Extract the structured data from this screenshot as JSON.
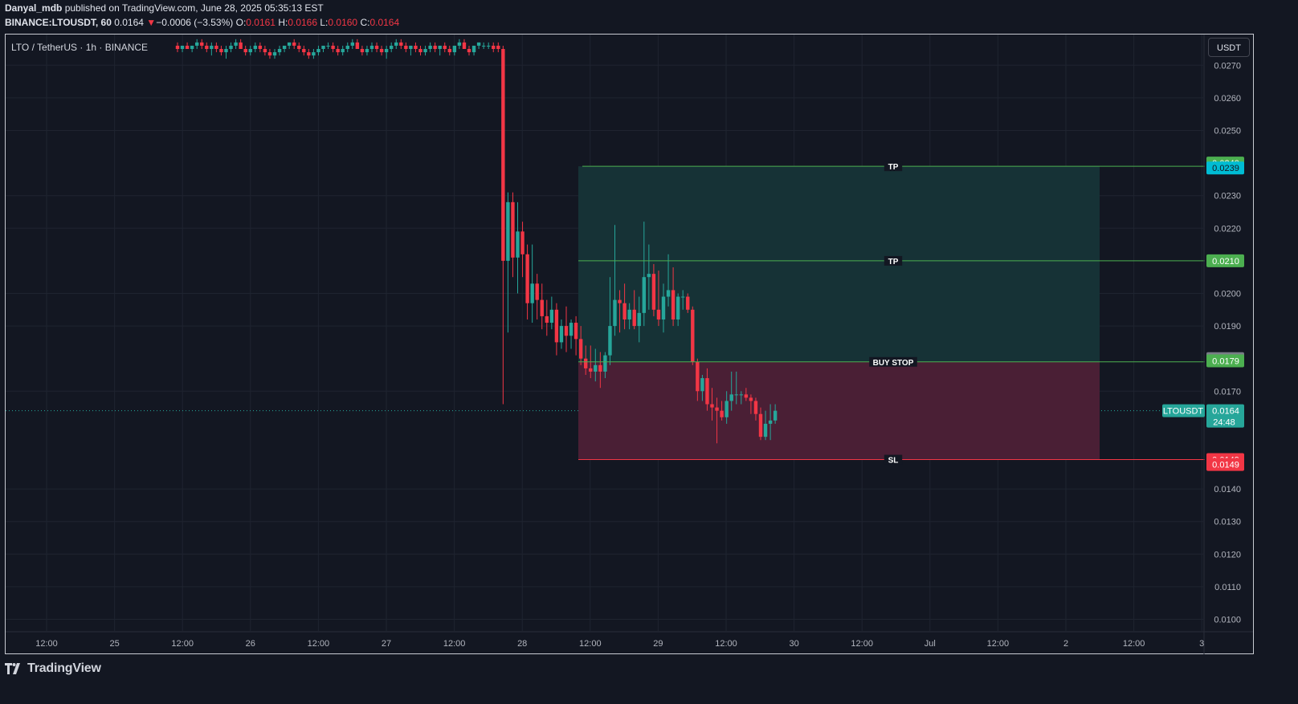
{
  "header": {
    "user": "Danyal_mdb",
    "published_text": " published on TradingView.com, June 28, 2025 05:35:13 EST",
    "symbol": "BINANCE:LTOUSDT, 60",
    "last": "0.0164",
    "arrow": "▼",
    "change": "−0.0006 (−3.53%)",
    "o_label": "O:",
    "o_value": "0.0161",
    "h_label": "H:",
    "h_value": "0.0166",
    "l_label": "L:",
    "l_value": "0.0160",
    "c_label": "C:",
    "c_value": "0.0164"
  },
  "legend_title": "LTO / TetherUS · 1h · BINANCE",
  "currency_button": "USDT",
  "footer": {
    "logo_text": "TradingView"
  },
  "colors": {
    "background": "#131722",
    "up": "#26a69a",
    "down": "#f23645",
    "target_zone": "#163236",
    "stop_zone": "#4a1f35",
    "tp_line": "#4caf50",
    "sl_line": "#f23645",
    "grid": "#1f2430"
  },
  "chart_data": {
    "type": "candlestick",
    "price_axis": {
      "ylim": [
        0.0095,
        0.0278
      ],
      "ticks": [
        "0.0270",
        "0.0260",
        "0.0250",
        "0.0230",
        "0.0220",
        "0.0200",
        "0.0190",
        "0.0170",
        "0.0140",
        "0.0130",
        "0.0120",
        "0.0110",
        "0.0100"
      ]
    },
    "time_axis": {
      "ticks": [
        "12:00",
        "25",
        "12:00",
        "26",
        "12:00",
        "27",
        "12:00",
        "28",
        "12:00",
        "29",
        "12:00",
        "30",
        "12:00",
        "Jul",
        "12:00",
        "2",
        "12:00",
        "3"
      ]
    },
    "candles": [
      [
        0.0276,
        0.0277,
        0.0274,
        0.0275
      ],
      [
        0.0275,
        0.0276,
        0.0274,
        0.0276
      ],
      [
        0.0276,
        0.0277,
        0.0275,
        0.0275
      ],
      [
        0.0275,
        0.0276,
        0.0274,
        0.0276
      ],
      [
        0.0276,
        0.0278,
        0.0275,
        0.0277
      ],
      [
        0.0277,
        0.0278,
        0.0275,
        0.0276
      ],
      [
        0.0276,
        0.0277,
        0.0274,
        0.0275
      ],
      [
        0.0275,
        0.0277,
        0.0273,
        0.0276
      ],
      [
        0.0276,
        0.0277,
        0.0274,
        0.0275
      ],
      [
        0.0275,
        0.0276,
        0.0273,
        0.0274
      ],
      [
        0.0274,
        0.0276,
        0.0272,
        0.0275
      ],
      [
        0.0275,
        0.0277,
        0.0274,
        0.0276
      ],
      [
        0.0276,
        0.0278,
        0.0275,
        0.0277
      ],
      [
        0.0277,
        0.0278,
        0.0275,
        0.0275
      ],
      [
        0.0275,
        0.0276,
        0.0273,
        0.0274
      ],
      [
        0.0274,
        0.0276,
        0.0273,
        0.0275
      ],
      [
        0.0275,
        0.0277,
        0.0274,
        0.0276
      ],
      [
        0.0276,
        0.0277,
        0.0274,
        0.0275
      ],
      [
        0.0275,
        0.0276,
        0.0273,
        0.0274
      ],
      [
        0.0274,
        0.0275,
        0.0272,
        0.0273
      ],
      [
        0.0273,
        0.0275,
        0.0272,
        0.0274
      ],
      [
        0.0274,
        0.0276,
        0.0273,
        0.0275
      ],
      [
        0.0275,
        0.0276,
        0.0274,
        0.0276
      ],
      [
        0.0276,
        0.0277,
        0.0275,
        0.0277
      ],
      [
        0.0277,
        0.0278,
        0.0275,
        0.0276
      ],
      [
        0.0276,
        0.0277,
        0.0274,
        0.0275
      ],
      [
        0.0275,
        0.0276,
        0.0273,
        0.0274
      ],
      [
        0.0274,
        0.0275,
        0.0272,
        0.0273
      ],
      [
        0.0273,
        0.0275,
        0.0272,
        0.0274
      ],
      [
        0.0274,
        0.0276,
        0.0273,
        0.0275
      ],
      [
        0.0275,
        0.0276,
        0.0274,
        0.0276
      ],
      [
        0.0276,
        0.0277,
        0.0275,
        0.0276
      ],
      [
        0.0276,
        0.0277,
        0.0274,
        0.0275
      ],
      [
        0.0275,
        0.0276,
        0.0273,
        0.0274
      ],
      [
        0.0274,
        0.0276,
        0.0273,
        0.0275
      ],
      [
        0.0275,
        0.0277,
        0.0274,
        0.0276
      ],
      [
        0.0276,
        0.0278,
        0.0275,
        0.0277
      ],
      [
        0.0277,
        0.0278,
        0.0275,
        0.0275
      ],
      [
        0.0275,
        0.0276,
        0.0273,
        0.0274
      ],
      [
        0.0274,
        0.0276,
        0.0273,
        0.0275
      ],
      [
        0.0275,
        0.0277,
        0.0274,
        0.0276
      ],
      [
        0.0276,
        0.0277,
        0.0274,
        0.0275
      ],
      [
        0.0275,
        0.0276,
        0.0273,
        0.0274
      ],
      [
        0.0274,
        0.0276,
        0.0272,
        0.0275
      ],
      [
        0.0275,
        0.0277,
        0.0274,
        0.0276
      ],
      [
        0.0276,
        0.0278,
        0.0275,
        0.0277
      ],
      [
        0.0277,
        0.0278,
        0.0275,
        0.0276
      ],
      [
        0.0276,
        0.0277,
        0.0274,
        0.0275
      ],
      [
        0.0275,
        0.0276,
        0.0273,
        0.0276
      ],
      [
        0.0276,
        0.0277,
        0.0274,
        0.0275
      ],
      [
        0.0275,
        0.0276,
        0.0273,
        0.0274
      ],
      [
        0.0274,
        0.0276,
        0.0273,
        0.0275
      ],
      [
        0.0275,
        0.0277,
        0.0274,
        0.0276
      ],
      [
        0.0276,
        0.0277,
        0.0274,
        0.0275
      ],
      [
        0.0275,
        0.0276,
        0.0273,
        0.0276
      ],
      [
        0.0276,
        0.0277,
        0.0274,
        0.0275
      ],
      [
        0.0275,
        0.0276,
        0.0273,
        0.0274
      ],
      [
        0.0274,
        0.0276,
        0.0273,
        0.0276
      ],
      [
        0.0276,
        0.0278,
        0.0275,
        0.0277
      ],
      [
        0.0277,
        0.0278,
        0.0275,
        0.0275
      ],
      [
        0.0275,
        0.0276,
        0.0273,
        0.0274
      ],
      [
        0.0274,
        0.0276,
        0.0273,
        0.0276
      ],
      [
        0.0276,
        0.0277,
        0.0275,
        0.0277
      ],
      [
        0.0276,
        0.0277,
        0.0275,
        0.0276
      ],
      [
        0.0276,
        0.0277,
        0.0275,
        0.0276
      ],
      [
        0.0276,
        0.0277,
        0.0274,
        0.0275
      ],
      [
        0.0276,
        0.0277,
        0.0274,
        0.0275
      ],
      [
        0.0275,
        0.0276,
        0.0166,
        0.021
      ],
      [
        0.021,
        0.0231,
        0.0188,
        0.0228
      ],
      [
        0.0228,
        0.0231,
        0.0205,
        0.0211
      ],
      [
        0.0211,
        0.0228,
        0.02,
        0.0219
      ],
      [
        0.0219,
        0.0222,
        0.0205,
        0.0212
      ],
      [
        0.0212,
        0.0215,
        0.0192,
        0.0197
      ],
      [
        0.0197,
        0.0215,
        0.0191,
        0.0203
      ],
      [
        0.0203,
        0.0206,
        0.0192,
        0.0198
      ],
      [
        0.0198,
        0.0203,
        0.0189,
        0.0193
      ],
      [
        0.0193,
        0.0198,
        0.0187,
        0.0191
      ],
      [
        0.0191,
        0.0199,
        0.0189,
        0.0195
      ],
      [
        0.0195,
        0.0197,
        0.0181,
        0.0185
      ],
      [
        0.0185,
        0.0192,
        0.0183,
        0.019
      ],
      [
        0.019,
        0.0196,
        0.0182,
        0.0187
      ],
      [
        0.0187,
        0.0192,
        0.0183,
        0.0191
      ],
      [
        0.0191,
        0.0193,
        0.0181,
        0.0186
      ],
      [
        0.0186,
        0.019,
        0.0178,
        0.018
      ],
      [
        0.018,
        0.0184,
        0.0175,
        0.0177
      ],
      [
        0.0177,
        0.0184,
        0.0174,
        0.0176
      ],
      [
        0.0176,
        0.0183,
        0.0173,
        0.0178
      ],
      [
        0.0178,
        0.0182,
        0.0171,
        0.0176
      ],
      [
        0.0176,
        0.0182,
        0.0174,
        0.0181
      ],
      [
        0.0181,
        0.0205,
        0.0178,
        0.019
      ],
      [
        0.019,
        0.0221,
        0.0187,
        0.0198
      ],
      [
        0.0198,
        0.0201,
        0.0188,
        0.0197
      ],
      [
        0.0197,
        0.0203,
        0.0189,
        0.0192
      ],
      [
        0.0192,
        0.0197,
        0.0189,
        0.0195
      ],
      [
        0.0195,
        0.0201,
        0.0189,
        0.019
      ],
      [
        0.019,
        0.0199,
        0.0185,
        0.0194
      ],
      [
        0.0194,
        0.0222,
        0.019,
        0.0205
      ],
      [
        0.0205,
        0.0215,
        0.0195,
        0.0206
      ],
      [
        0.0206,
        0.0209,
        0.0193,
        0.0195
      ],
      [
        0.0195,
        0.0207,
        0.019,
        0.0192
      ],
      [
        0.0192,
        0.0203,
        0.0188,
        0.0199
      ],
      [
        0.0199,
        0.0212,
        0.0196,
        0.0201
      ],
      [
        0.0201,
        0.0208,
        0.019,
        0.0192
      ],
      [
        0.0192,
        0.02,
        0.019,
        0.0199
      ],
      [
        0.0199,
        0.0201,
        0.0195,
        0.0199
      ],
      [
        0.0199,
        0.02,
        0.0194,
        0.0195
      ],
      [
        0.0195,
        0.0196,
        0.0178,
        0.0179
      ],
      [
        0.0179,
        0.018,
        0.0167,
        0.017
      ],
      [
        0.017,
        0.0175,
        0.0167,
        0.0174
      ],
      [
        0.0174,
        0.0177,
        0.0164,
        0.0166
      ],
      [
        0.0166,
        0.0171,
        0.0161,
        0.0165
      ],
      [
        0.0165,
        0.0168,
        0.0154,
        0.0164
      ],
      [
        0.0164,
        0.0167,
        0.0161,
        0.0162
      ],
      [
        0.0162,
        0.017,
        0.016,
        0.0167
      ],
      [
        0.0167,
        0.0176,
        0.0164,
        0.0169
      ],
      [
        0.0169,
        0.0176,
        0.0166,
        0.0169
      ],
      [
        0.0169,
        0.017,
        0.0166,
        0.0169
      ],
      [
        0.0169,
        0.0171,
        0.0167,
        0.0168
      ],
      [
        0.0168,
        0.0169,
        0.0163,
        0.0167
      ],
      [
        0.0167,
        0.0168,
        0.0161,
        0.0163
      ],
      [
        0.0163,
        0.0165,
        0.0155,
        0.0156
      ],
      [
        0.0156,
        0.0164,
        0.0155,
        0.016
      ],
      [
        0.016,
        0.0166,
        0.0155,
        0.0161
      ],
      [
        0.0161,
        0.0166,
        0.016,
        0.0164
      ]
    ],
    "current_price": {
      "symbol_tag": "LTOUSDT",
      "value": "0.0164",
      "countdown": "24:48",
      "price": 0.0164
    },
    "position": {
      "entry": 0.0179,
      "stop": 0.0149,
      "targets": [
        0.0239,
        0.021
      ],
      "labels": {
        "tp1": "TP",
        "tp2": "TP",
        "entry": "BUY STOP",
        "sl": "SL"
      }
    },
    "price_tags": [
      {
        "value": "0.0240",
        "price": 0.024,
        "bg": "#4caf50",
        "fg": "#ffffff"
      },
      {
        "value": "0.0239",
        "price": 0.02385,
        "bg": "#00bcd4",
        "fg": "#131722"
      },
      {
        "value": "0.0210",
        "price": 0.021,
        "bg": "#4caf50",
        "fg": "#ffffff"
      },
      {
        "value": "0.0179",
        "price": 0.018,
        "bg": "#787b86",
        "fg": "#ffffff"
      },
      {
        "value": "0.0179",
        "price": 0.01793,
        "bg": "#4caf50",
        "fg": "#ffffff"
      },
      {
        "value": "0.0149",
        "price": 0.0149,
        "bg": "#f23645",
        "fg": "#ffffff"
      },
      {
        "value": "0.0149",
        "price": 0.01475,
        "bg": "#f23645",
        "fg": "#ffffff"
      }
    ]
  }
}
